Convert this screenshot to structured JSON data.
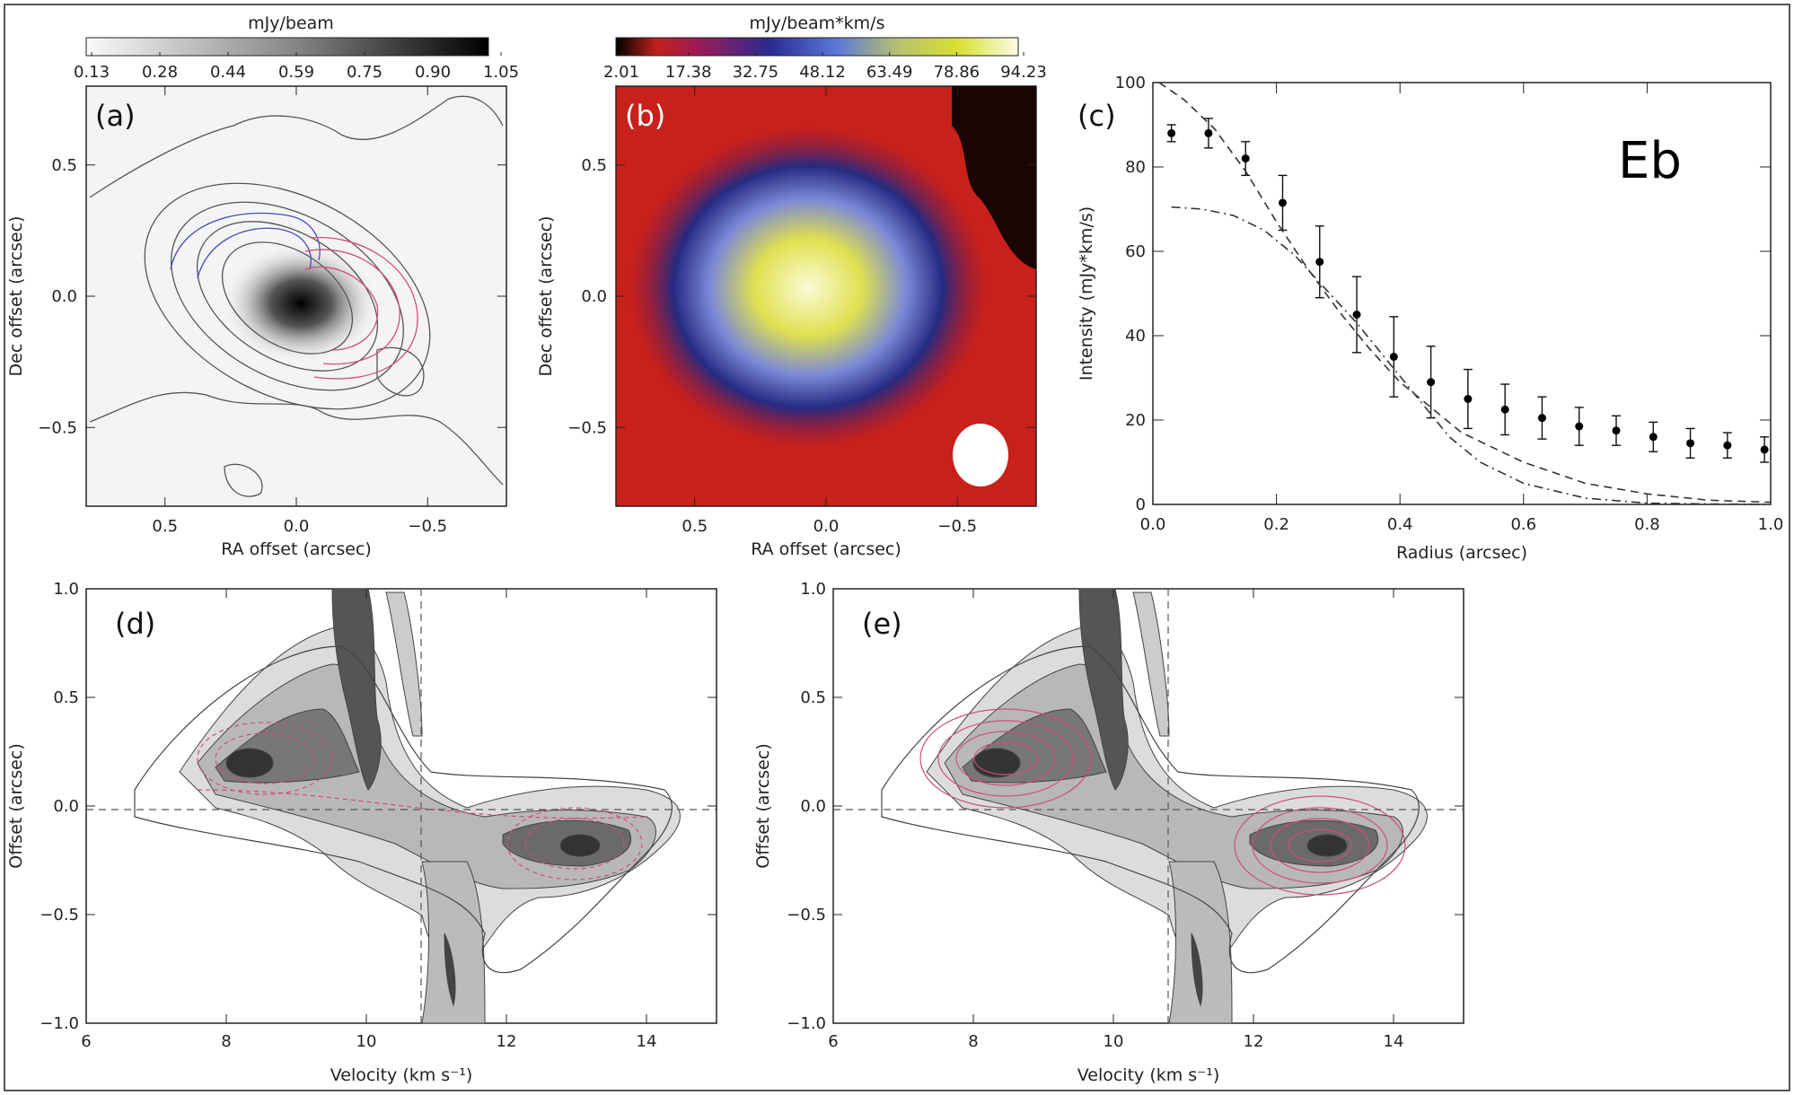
{
  "figure_tag": "Eb",
  "panels": {
    "a": {
      "label": "(a)",
      "colorbar_title": "mJy/beam",
      "colorbar_ticks": [
        "0.13",
        "0.28",
        "0.44",
        "0.59",
        "0.75",
        "0.90",
        "1.05"
      ],
      "xlabel": "RA offset (arcsec)",
      "ylabel": "Dec offset (arcsec)",
      "xticks": [
        "0.5",
        "0.0",
        "−0.5"
      ],
      "yticks": [
        "0.5",
        "0.0",
        "−0.5"
      ]
    },
    "b": {
      "label": "(b)",
      "colorbar_title": "mJy/beam*km/s",
      "colorbar_ticks": [
        "2.01",
        "17.38",
        "32.75",
        "48.12",
        "63.49",
        "78.86",
        "94.23"
      ],
      "xlabel": "RA offset (arcsec)",
      "ylabel": "Dec offset (arcsec)",
      "xticks": [
        "0.5",
        "0.0",
        "−0.5"
      ],
      "yticks": [
        "0.5",
        "0.0",
        "−0.5"
      ]
    },
    "c": {
      "label": "(c)"
    },
    "d": {
      "label": "(d)",
      "xlabel": "Velocity (km s⁻¹)",
      "ylabel": "Offset (arcsec)",
      "xticks": [
        "6",
        "8",
        "10",
        "12",
        "14"
      ],
      "yticks": [
        "1.0",
        "0.5",
        "0.0",
        "−0.5",
        "−1.0"
      ]
    },
    "e": {
      "label": "(e)",
      "xlabel": "Velocity (km s⁻¹)",
      "ylabel": "Offset (arcsec)",
      "xticks": [
        "6",
        "8",
        "10",
        "12",
        "14"
      ],
      "yticks": [
        "1.0",
        "0.5",
        "0.0",
        "−0.5",
        "−1.0"
      ]
    }
  },
  "chart_data": [
    {
      "type": "scatter",
      "panel": "c",
      "xlabel": "Radius (arcsec)",
      "ylabel": "Intensity (mJy*km/s)",
      "xlim": [
        0,
        1.0
      ],
      "ylim": [
        0,
        100
      ],
      "xticks": [
        "0.0",
        "0.2",
        "0.4",
        "0.6",
        "0.8",
        "1.0"
      ],
      "yticks": [
        "0",
        "20",
        "40",
        "60",
        "80",
        "100"
      ],
      "series": [
        {
          "style": "points-with-errorbars",
          "x": [
            0.03,
            0.09,
            0.15,
            0.21,
            0.27,
            0.33,
            0.39,
            0.45,
            0.51,
            0.57,
            0.63,
            0.69,
            0.75,
            0.81,
            0.87,
            0.93,
            0.99
          ],
          "y": [
            88,
            88,
            82,
            71.5,
            57.5,
            45,
            35,
            29,
            25,
            22.5,
            20.5,
            18.5,
            17.5,
            16,
            14.5,
            14,
            13
          ],
          "err": [
            2,
            3.5,
            4,
            6.5,
            8.5,
            9,
            9.5,
            8.5,
            7,
            6,
            5,
            4.5,
            3.5,
            3.5,
            3.5,
            3,
            3
          ]
        },
        {
          "style": "dashed",
          "x": [
            0.01,
            0.05,
            0.1,
            0.15,
            0.2,
            0.25,
            0.3,
            0.35,
            0.4,
            0.45,
            0.5,
            0.6,
            0.7,
            0.8,
            0.9,
            1.0
          ],
          "y": [
            100,
            96,
            89,
            79,
            67,
            56,
            46,
            37,
            29,
            23,
            17,
            10,
            5,
            2.5,
            1,
            0.5
          ]
        },
        {
          "style": "dash-dot",
          "x": [
            0.03,
            0.08,
            0.13,
            0.18,
            0.23,
            0.28,
            0.33,
            0.38,
            0.43,
            0.48,
            0.53,
            0.6,
            0.7,
            0.8,
            0.9,
            1.0
          ],
          "y": [
            70.5,
            70,
            68.5,
            65,
            59,
            51,
            43,
            34,
            25,
            16,
            10,
            5,
            1.5,
            0.3,
            0.1,
            0
          ]
        }
      ]
    }
  ]
}
